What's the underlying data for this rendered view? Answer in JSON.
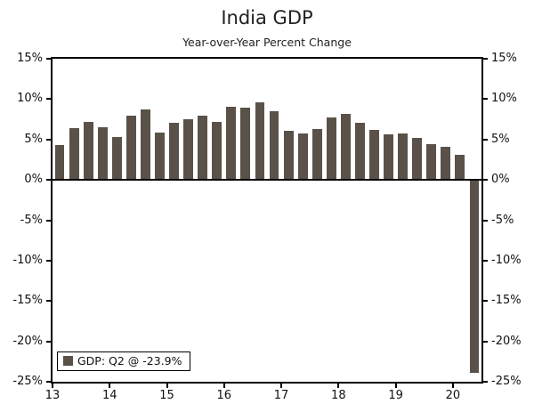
{
  "title": "India GDP",
  "subtitle": "Year-over-Year Percent Change",
  "legend": {
    "label": "GDP: Q2 @ -23.9%"
  },
  "chart_data": {
    "type": "bar",
    "title": "India GDP",
    "subtitle": "Year-over-Year Percent Change",
    "ylim": [
      -25,
      15
    ],
    "y_ticks": [
      15,
      10,
      5,
      0,
      -5,
      -10,
      -15,
      -20,
      -25
    ],
    "y_tick_suffix": "%",
    "x_year_labels": [
      "13",
      "14",
      "15",
      "16",
      "17",
      "18",
      "19",
      "20"
    ],
    "bar_color": "#5A5149",
    "grid": false,
    "legend_position": "bottom-left",
    "categories": [
      "2013 Q1",
      "2013 Q2",
      "2013 Q3",
      "2013 Q4",
      "2014 Q1",
      "2014 Q2",
      "2014 Q3",
      "2014 Q4",
      "2015 Q1",
      "2015 Q2",
      "2015 Q3",
      "2015 Q4",
      "2016 Q1",
      "2016 Q2",
      "2016 Q3",
      "2016 Q4",
      "2017 Q1",
      "2017 Q2",
      "2017 Q3",
      "2017 Q4",
      "2018 Q1",
      "2018 Q2",
      "2018 Q3",
      "2018 Q4",
      "2019 Q1",
      "2019 Q2",
      "2019 Q3",
      "2019 Q4",
      "2020 Q1",
      "2020 Q2"
    ],
    "values": [
      4.3,
      6.4,
      7.2,
      6.5,
      5.3,
      8.0,
      8.7,
      5.9,
      7.1,
      7.5,
      8.0,
      7.2,
      9.1,
      8.9,
      9.6,
      8.5,
      6.1,
      5.7,
      6.3,
      7.7,
      8.2,
      7.1,
      6.2,
      5.6,
      5.7,
      5.2,
      4.4,
      4.1,
      3.1,
      -23.9
    ],
    "legend_label": "GDP: Q2 @ -23.9%"
  }
}
